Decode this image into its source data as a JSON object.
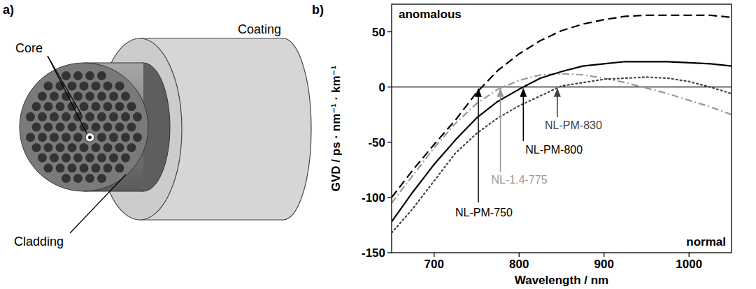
{
  "diagram": {
    "panel_label": "a)",
    "labels": {
      "core": "Core",
      "cladding": "Cladding",
      "coating": "Coating"
    }
  },
  "chart_data": {
    "type": "line",
    "panel_label": "b)",
    "x_label": "Wavelength / nm",
    "y_label": "GVD / ps · nm⁻¹ · km⁻¹",
    "annotations": [
      "anomalous",
      "normal"
    ],
    "x": [
      650,
      675,
      700,
      725,
      750,
      775,
      800,
      825,
      850,
      875,
      900,
      925,
      950,
      975,
      1000,
      1025,
      1050
    ],
    "xlim": [
      650,
      1050
    ],
    "xticks": [
      700,
      800,
      900,
      1000
    ],
    "ylim": [
      -150,
      75
    ],
    "yticks": [
      -150,
      -100,
      -50,
      0,
      50
    ],
    "series": [
      {
        "name": "NL-PM-750",
        "color": "#000000",
        "line_style": "dashed",
        "zero_dispersion": 752,
        "values": [
          -100,
          -75,
          -52,
          -30,
          -5,
          15,
          30,
          42,
          51,
          57,
          61,
          64,
          65,
          65,
          65,
          65,
          63
        ]
      },
      {
        "name": "NL-1.4-775",
        "color": "#999999",
        "line_style": "dashdot",
        "zero_dispersion": 778,
        "values": [
          -105,
          -80,
          -55,
          -33,
          -15,
          -2,
          6,
          11,
          12,
          11,
          8,
          4,
          -1,
          -6,
          -12,
          -18,
          -25
        ]
      },
      {
        "name": "NL-PM-800",
        "color": "#000000",
        "line_style": "solid",
        "zero_dispersion": 805,
        "values": [
          -122,
          -95,
          -70,
          -48,
          -28,
          -13,
          -2,
          8,
          14,
          19,
          21,
          23,
          23,
          23,
          22,
          21,
          19
        ]
      },
      {
        "name": "NL-PM-830",
        "color": "#444444",
        "line_style": "dotted",
        "zero_dispersion": 845,
        "values": [
          -132,
          -110,
          -85,
          -60,
          -42,
          -28,
          -17,
          -8,
          1,
          4,
          7,
          8,
          9,
          8,
          5,
          0,
          -6
        ]
      }
    ]
  }
}
